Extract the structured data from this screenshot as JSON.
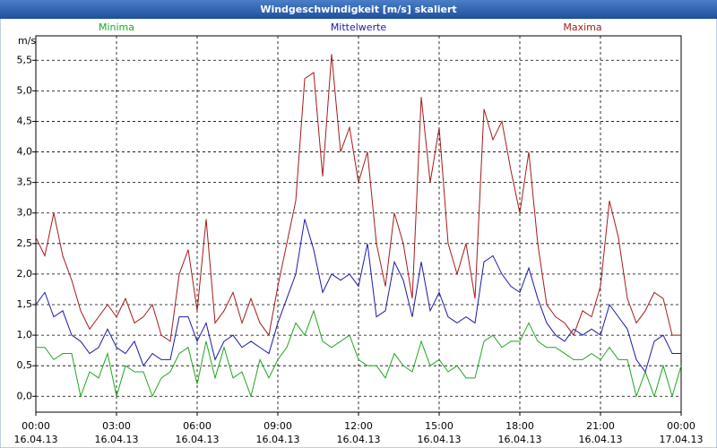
{
  "chart_data": {
    "type": "line",
    "title": "Windgeschwindigkeit [m/s] skaliert",
    "ylabel": "m/s",
    "x": [
      0,
      20,
      40,
      60,
      80,
      100,
      120,
      140,
      160,
      180,
      200,
      220,
      240,
      260,
      280,
      300,
      320,
      340,
      360,
      380,
      400,
      420,
      440,
      460,
      480,
      500,
      520,
      540,
      560,
      580,
      600,
      620,
      640,
      660,
      680,
      700,
      720,
      740,
      760,
      780,
      800,
      820,
      840,
      860,
      880,
      900,
      920,
      940,
      960,
      980,
      1000,
      1020,
      1040,
      1060,
      1080,
      1100,
      1120,
      1140,
      1160,
      1180,
      1200,
      1220,
      1240,
      1260,
      1280,
      1300,
      1320,
      1340,
      1360,
      1380,
      1400,
      1420,
      1440
    ],
    "xlim": [
      0,
      1440
    ],
    "xticks": [
      {
        "value": 0,
        "label": "00:00",
        "date": "16.04.13"
      },
      {
        "value": 180,
        "label": "03:00",
        "date": "16.04.13"
      },
      {
        "value": 360,
        "label": "06:00",
        "date": "16.04.13"
      },
      {
        "value": 540,
        "label": "09:00",
        "date": "16.04.13"
      },
      {
        "value": 720,
        "label": "12:00",
        "date": "16.04.13"
      },
      {
        "value": 900,
        "label": "15:00",
        "date": "16.04.13"
      },
      {
        "value": 1080,
        "label": "18:00",
        "date": "16.04.13"
      },
      {
        "value": 1260,
        "label": "21:00",
        "date": "16.04.13"
      },
      {
        "value": 1440,
        "label": "00:00",
        "date": "17.04.13"
      }
    ],
    "ylim": [
      -0.26,
      5.9
    ],
    "yticks": [
      {
        "value": 0,
        "label": "0,0"
      },
      {
        "value": 0.5,
        "label": "0,5"
      },
      {
        "value": 1,
        "label": "1,0"
      },
      {
        "value": 1.5,
        "label": "1,5"
      },
      {
        "value": 2,
        "label": "2,0"
      },
      {
        "value": 2.5,
        "label": "2,5"
      },
      {
        "value": 3,
        "label": "3,0"
      },
      {
        "value": 3.5,
        "label": "3,5"
      },
      {
        "value": 4,
        "label": "4,0"
      },
      {
        "value": 4.5,
        "label": "4,5"
      },
      {
        "value": 5,
        "label": "5,0"
      },
      {
        "value": 5.5,
        "label": "5,5"
      }
    ],
    "grid": true,
    "series": [
      {
        "name": "Minima",
        "color": "#1fa81f",
        "values": [
          0.8,
          0.8,
          0.6,
          0.7,
          0.7,
          0.0,
          0.4,
          0.3,
          0.7,
          0.0,
          0.5,
          0.4,
          0.4,
          0.0,
          0.3,
          0.4,
          0.7,
          0.8,
          0.2,
          0.9,
          0.3,
          0.8,
          0.3,
          0.4,
          0.0,
          0.6,
          0.3,
          0.6,
          0.8,
          1.2,
          1.0,
          1.4,
          0.9,
          0.8,
          0.9,
          1.0,
          0.6,
          0.5,
          0.5,
          0.3,
          0.7,
          0.5,
          0.4,
          0.9,
          0.5,
          0.6,
          0.4,
          0.5,
          0.3,
          0.3,
          0.9,
          1.0,
          0.8,
          0.9,
          0.9,
          1.2,
          0.9,
          0.8,
          0.8,
          0.7,
          0.6,
          0.6,
          0.7,
          0.6,
          0.8,
          0.6,
          0.6,
          0.0,
          0.4,
          0.0,
          0.5,
          0.0,
          0.5
        ]
      },
      {
        "name": "Mittelwerte",
        "color": "#1a1aa8",
        "values": [
          1.5,
          1.7,
          1.3,
          1.4,
          1.0,
          0.9,
          0.7,
          0.8,
          1.1,
          0.8,
          0.7,
          0.9,
          0.5,
          0.7,
          0.6,
          0.6,
          1.3,
          1.3,
          0.9,
          1.2,
          0.6,
          0.9,
          1.0,
          0.8,
          0.9,
          0.8,
          0.7,
          1.2,
          1.6,
          2.0,
          2.9,
          2.4,
          1.7,
          2.0,
          1.9,
          2.0,
          1.8,
          2.5,
          1.3,
          1.4,
          2.2,
          1.9,
          1.3,
          2.2,
          1.4,
          1.7,
          1.3,
          1.2,
          1.3,
          1.2,
          2.2,
          2.3,
          2.0,
          1.8,
          1.7,
          2.1,
          1.6,
          1.2,
          1.0,
          0.9,
          1.1,
          1.0,
          1.1,
          1.0,
          1.5,
          1.3,
          1.1,
          0.6,
          0.4,
          0.9,
          1.0,
          0.7,
          0.7
        ]
      },
      {
        "name": "Maxima",
        "color": "#a81a1a",
        "values": [
          2.6,
          2.3,
          3.0,
          2.3,
          1.9,
          1.4,
          1.1,
          1.3,
          1.5,
          1.3,
          1.6,
          1.2,
          1.3,
          1.5,
          1.0,
          0.9,
          2.0,
          2.4,
          1.4,
          2.9,
          1.2,
          1.4,
          1.7,
          1.2,
          1.6,
          1.2,
          1.0,
          1.8,
          2.5,
          3.2,
          5.2,
          5.3,
          3.6,
          5.6,
          4.0,
          4.4,
          3.5,
          4.0,
          2.5,
          1.8,
          3.0,
          2.5,
          1.6,
          4.9,
          3.5,
          4.4,
          2.5,
          2.0,
          2.5,
          1.6,
          4.7,
          4.2,
          4.5,
          3.7,
          3.0,
          4.0,
          2.5,
          1.5,
          1.3,
          1.2,
          1.0,
          1.4,
          1.3,
          1.8,
          3.2,
          2.6,
          1.6,
          1.2,
          1.4,
          1.7,
          1.6,
          1.0,
          1.0
        ]
      }
    ]
  }
}
